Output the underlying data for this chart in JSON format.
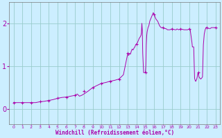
{
  "title": "",
  "xlabel": "Windchill (Refroidissement éolien,°C)",
  "ylabel": "",
  "background_color": "#cceeff",
  "grid_color": "#99cccc",
  "line_color": "#aa00aa",
  "marker_color": "#aa00aa",
  "xlim": [
    -0.5,
    23.5
  ],
  "ylim": [
    -0.35,
    2.5
  ],
  "yticks": [
    0,
    1,
    2
  ],
  "xticks": [
    0,
    1,
    2,
    3,
    4,
    5,
    6,
    7,
    8,
    9,
    10,
    11,
    12,
    13,
    14,
    15,
    16,
    17,
    18,
    19,
    20,
    21,
    22,
    23
  ],
  "hours": [
    0,
    0.33,
    0.67,
    1,
    1.5,
    2,
    2.5,
    3,
    3.5,
    4,
    4.5,
    5,
    5.5,
    6,
    6.5,
    7,
    7.25,
    7.5,
    7.75,
    8,
    8.5,
    9,
    9.5,
    10,
    10.5,
    11,
    11.5,
    12,
    12.25,
    12.5,
    13,
    13.1,
    13.2,
    13.3,
    13.4,
    13.5,
    13.6,
    13.7,
    13.8,
    13.9,
    14,
    14.1,
    14.2,
    14.3,
    14.4,
    14.5,
    14.55,
    14.6,
    14.65,
    14.7,
    14.8,
    14.9,
    15,
    15.05,
    15.1,
    15.15,
    15.2,
    15.3,
    15.4,
    15.5,
    15.6,
    15.7,
    15.8,
    15.9,
    16,
    16.1,
    16.2,
    16.4,
    16.5,
    16.6,
    16.7,
    16.8,
    17,
    17.2,
    17.4,
    17.5,
    17.6,
    17.8,
    18,
    18.2,
    18.4,
    18.5,
    18.6,
    18.7,
    18.8,
    19,
    19.2,
    19.4,
    19.5,
    19.6,
    19.8,
    20,
    20.1,
    20.2,
    20.3,
    20.35,
    20.4,
    20.5,
    20.6,
    20.65,
    20.7,
    20.75,
    20.8,
    20.85,
    20.9,
    20.95,
    21,
    21.05,
    21.1,
    21.2,
    21.3,
    21.4,
    21.5,
    21.6,
    21.7,
    21.8,
    21.9,
    22,
    22.2,
    22.3,
    22.4,
    22.5,
    22.6,
    22.8,
    23
  ],
  "values": [
    0.15,
    0.15,
    0.15,
    0.15,
    0.15,
    0.15,
    0.15,
    0.17,
    0.18,
    0.2,
    0.22,
    0.25,
    0.27,
    0.28,
    0.3,
    0.32,
    0.35,
    0.3,
    0.32,
    0.35,
    0.42,
    0.5,
    0.55,
    0.6,
    0.62,
    0.65,
    0.67,
    0.7,
    0.75,
    0.8,
    1.3,
    1.25,
    1.3,
    1.28,
    1.35,
    1.4,
    1.38,
    1.42,
    1.45,
    1.5,
    1.52,
    1.55,
    1.6,
    1.65,
    1.68,
    1.72,
    1.78,
    2.0,
    1.85,
    1.3,
    0.85,
    0.85,
    0.85,
    1.0,
    1.5,
    1.7,
    1.8,
    1.9,
    1.95,
    2.05,
    2.1,
    2.15,
    2.2,
    2.25,
    2.2,
    2.15,
    2.1,
    2.05,
    2.0,
    1.95,
    1.92,
    1.9,
    1.9,
    1.88,
    1.87,
    1.85,
    1.85,
    1.85,
    1.87,
    1.86,
    1.85,
    1.85,
    1.87,
    1.86,
    1.85,
    1.87,
    1.86,
    1.85,
    1.85,
    1.85,
    1.85,
    1.87,
    1.85,
    1.7,
    1.55,
    1.45,
    1.45,
    1.45,
    0.72,
    0.68,
    0.65,
    0.65,
    0.68,
    0.7,
    0.75,
    0.8,
    0.85,
    0.8,
    0.75,
    0.72,
    0.7,
    0.72,
    0.75,
    1.5,
    1.75,
    1.85,
    1.9,
    1.9,
    1.88,
    1.88,
    1.88,
    1.9,
    1.9,
    1.9,
    1.9
  ],
  "marker_y": [
    0.15,
    0.15,
    0.15,
    0.17,
    0.2,
    0.25,
    0.28,
    0.32,
    0.42,
    0.5,
    0.6,
    0.65,
    0.7,
    1.3,
    1.52,
    0.85,
    2.2,
    1.9,
    1.87,
    1.87,
    1.87,
    0.85,
    1.9,
    1.9
  ]
}
